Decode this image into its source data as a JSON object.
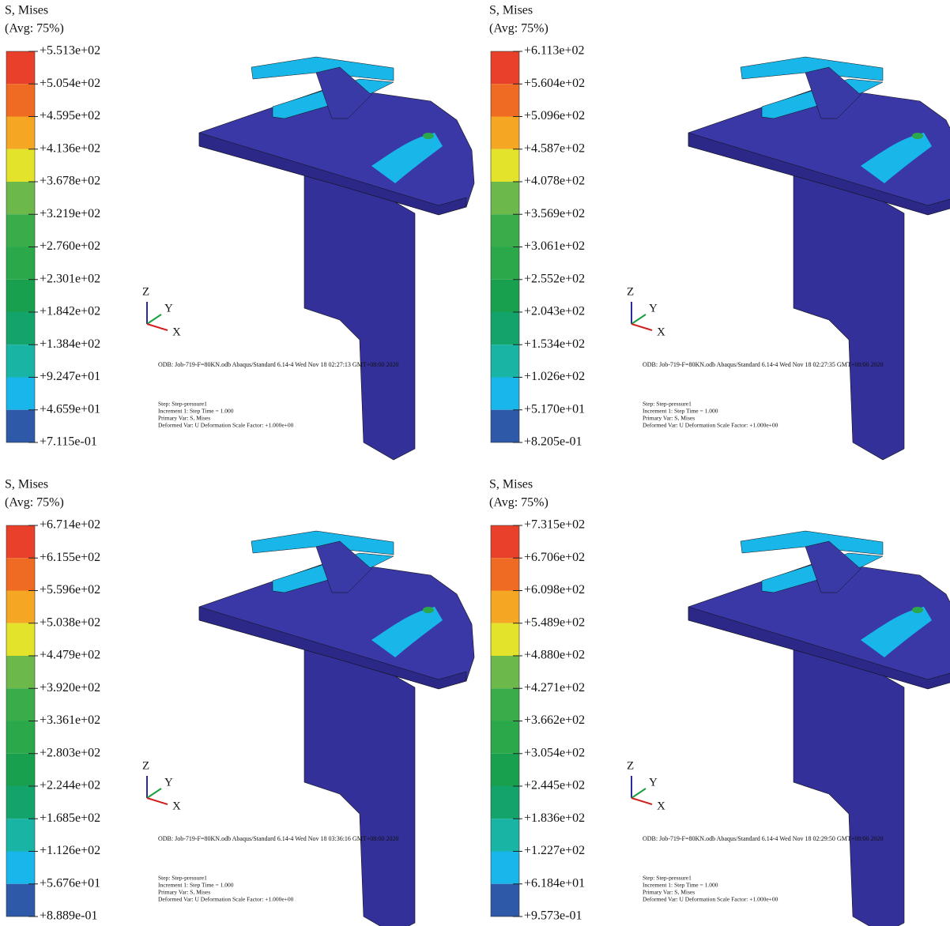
{
  "panels": [
    {
      "legend_title": "S, Mises",
      "legend_avg": "(Avg: 75%)",
      "levels": [
        "+5.513e+02",
        "+5.054e+02",
        "+4.595e+02",
        "+4.136e+02",
        "+3.678e+02",
        "+3.219e+02",
        "+2.760e+02",
        "+2.301e+02",
        "+1.842e+02",
        "+1.384e+02",
        "+9.247e+01",
        "+4.659e+01",
        "+7.115e-01"
      ],
      "axes": [
        "Z",
        "Y",
        "X"
      ],
      "odb": "ODB: Job-719-F=80KN.odb Abaqus/Standard 6.14-4 Wed Nov 18 02:27:13 GMT+08:00 2020",
      "step": [
        "Step: Step-pressure1",
        "Increment 1: Step Time = 1.000",
        "Primary Var: S, Mises",
        "Deformed Var: U Deformation Scale Factor: +1.000e+00"
      ]
    },
    {
      "legend_title": "S, Mises",
      "legend_avg": "(Avg: 75%)",
      "levels": [
        "+6.113e+02",
        "+5.604e+02",
        "+5.096e+02",
        "+4.587e+02",
        "+4.078e+02",
        "+3.569e+02",
        "+3.061e+02",
        "+2.552e+02",
        "+2.043e+02",
        "+1.534e+02",
        "+1.026e+02",
        "+5.170e+01",
        "+8.205e-01"
      ],
      "axes": [
        "Z",
        "Y",
        "X"
      ],
      "odb": "ODB: Job-719-F=80KN.odb Abaqus/Standard 6.14-4 Wed Nov 18 02:27:35 GMT+08:00 2020",
      "step": [
        "Step: Step-pressure1",
        "Increment 1: Step Time = 1.000",
        "Primary Var: S, Mises",
        "Deformed Var: U Deformation Scale Factor: +1.000e+00"
      ]
    },
    {
      "legend_title": "S, Mises",
      "legend_avg": "(Avg: 75%)",
      "levels": [
        "+6.714e+02",
        "+6.155e+02",
        "+5.596e+02",
        "+5.038e+02",
        "+4.479e+02",
        "+3.920e+02",
        "+3.361e+02",
        "+2.803e+02",
        "+2.244e+02",
        "+1.685e+02",
        "+1.126e+02",
        "+5.676e+01",
        "+8.889e-01"
      ],
      "axes": [
        "Z",
        "Y",
        "X"
      ],
      "odb": "ODB: Job-719-F=80KN.odb Abaqus/Standard 6.14-4 Wed Nov 18 03:36:16 GMT+08:00 2020",
      "step": [
        "Step: Step-pressure1",
        "Increment 1: Step Time = 1.000",
        "Primary Var: S, Mises",
        "Deformed Var: U Deformation Scale Factor: +1.000e+00"
      ]
    },
    {
      "legend_title": "S, Mises",
      "legend_avg": "(Avg: 75%)",
      "levels": [
        "+7.315e+02",
        "+6.706e+02",
        "+6.098e+02",
        "+5.489e+02",
        "+4.880e+02",
        "+4.271e+02",
        "+3.662e+02",
        "+3.054e+02",
        "+2.445e+02",
        "+1.836e+02",
        "+1.227e+02",
        "+6.184e+01",
        "+9.573e-01"
      ],
      "axes": [
        "Z",
        "Y",
        "X"
      ],
      "odb": "ODB: Job-719-F=80KN.odb Abaqus/Standard 6.14-4 Wed Nov 18 02:29:50 GMT+08:00 2020",
      "step": [
        "Step: Step-pressure1",
        "Increment 1: Step Time = 1.000",
        "Primary Var: S, Mises",
        "Deformed Var: U Deformation Scale Factor: +1.000e+00"
      ]
    }
  ]
}
